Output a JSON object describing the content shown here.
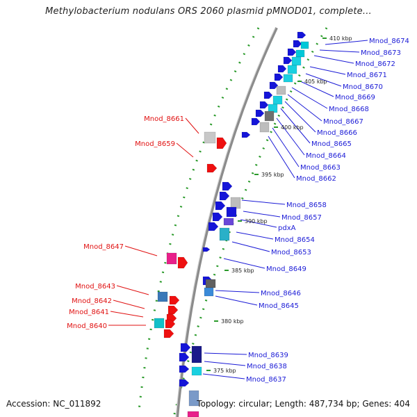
{
  "title": "Methylobacterium nodulans ORS 2060 plasmid pMNOD01, complete...",
  "accession_label": "Accession: NC_011892",
  "footer_text": "Topology: circular; Length: 487,734 bp; Genes: 404",
  "colors": {
    "right_label": "#1a1ad6",
    "left_label": "#e01010",
    "backbone": "#9a9a9a",
    "dots": "#2a9a2a"
  },
  "ticks": [
    "410 kbp",
    "405 kbp",
    "400 kbp",
    "395 kbp",
    "390 kbp",
    "385 kbp",
    "380 kbp",
    "375 kbp"
  ],
  "right_genes": [
    "Mnod_8674",
    "Mnod_8673",
    "Mnod_8672",
    "Mnod_8671",
    "Mnod_8670",
    "Mnod_8669",
    "Mnod_8668",
    "Mnod_8667",
    "Mnod_8666",
    "Mnod_8665",
    "Mnod_8664",
    "Mnod_8663",
    "Mnod_8662",
    "Mnod_8658",
    "Mnod_8657",
    "pdxA",
    "Mnod_8654",
    "Mnod_8653",
    "Mnod_8649",
    "Mnod_8646",
    "Mnod_8645",
    "Mnod_8639",
    "Mnod_8638",
    "Mnod_8637"
  ],
  "left_genes": [
    "Mnod_8661",
    "Mnod_8659",
    "Mnod_8647",
    "Mnod_8643",
    "Mnod_8642",
    "Mnod_8641",
    "Mnod_8640"
  ]
}
